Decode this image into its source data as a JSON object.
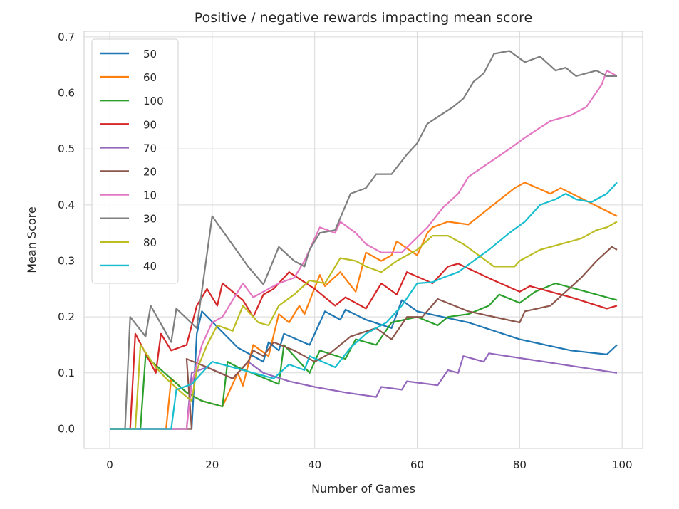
{
  "chart_data": {
    "type": "line",
    "title": "Positive / negative rewards impacting mean score",
    "xlabel": "Number of Games",
    "ylabel": "Mean Score",
    "xlim": [
      -5,
      104
    ],
    "ylim": [
      -0.035,
      0.71
    ],
    "xticks": [
      0,
      20,
      40,
      60,
      80,
      100
    ],
    "yticks": [
      0.0,
      0.1,
      0.2,
      0.3,
      0.4,
      0.5,
      0.6,
      0.7
    ],
    "grid": true,
    "legend_position": "upper-left",
    "series": [
      {
        "name": "50",
        "color": "#1f77b4",
        "points": [
          [
            0,
            0
          ],
          [
            16,
            0
          ],
          [
            17,
            0.17
          ],
          [
            18,
            0.21
          ],
          [
            25,
            0.145
          ],
          [
            28,
            0.13
          ],
          [
            30,
            0.12
          ],
          [
            31,
            0.155
          ],
          [
            33,
            0.14
          ],
          [
            34,
            0.17
          ],
          [
            39,
            0.15
          ],
          [
            42,
            0.21
          ],
          [
            45,
            0.195
          ],
          [
            46,
            0.213
          ],
          [
            50,
            0.195
          ],
          [
            55,
            0.18
          ],
          [
            57,
            0.23
          ],
          [
            60,
            0.21
          ],
          [
            70,
            0.19
          ],
          [
            80,
            0.16
          ],
          [
            90,
            0.14
          ],
          [
            97,
            0.133
          ],
          [
            99,
            0.15
          ]
        ]
      },
      {
        "name": "60",
        "color": "#ff7f0e",
        "points": [
          [
            0,
            0
          ],
          [
            11,
            0
          ],
          [
            12,
            0.09
          ],
          [
            15,
            0.065
          ],
          [
            18,
            0.05
          ],
          [
            22,
            0.04
          ],
          [
            25,
            0.1
          ],
          [
            26,
            0.077
          ],
          [
            28,
            0.15
          ],
          [
            31,
            0.13
          ],
          [
            33,
            0.205
          ],
          [
            35,
            0.19
          ],
          [
            37,
            0.22
          ],
          [
            38,
            0.205
          ],
          [
            41,
            0.275
          ],
          [
            42,
            0.255
          ],
          [
            45,
            0.28
          ],
          [
            48,
            0.245
          ],
          [
            50,
            0.315
          ],
          [
            53,
            0.3
          ],
          [
            55,
            0.31
          ],
          [
            56,
            0.335
          ],
          [
            60,
            0.31
          ],
          [
            62,
            0.35
          ],
          [
            63,
            0.36
          ],
          [
            66,
            0.37
          ],
          [
            70,
            0.365
          ],
          [
            79,
            0.43
          ],
          [
            81,
            0.44
          ],
          [
            86,
            0.42
          ],
          [
            88,
            0.43
          ],
          [
            99,
            0.38
          ]
        ]
      },
      {
        "name": "100",
        "color": "#2ca02c",
        "points": [
          [
            0,
            0
          ],
          [
            6,
            0
          ],
          [
            7,
            0.13
          ],
          [
            15,
            0.065
          ],
          [
            18,
            0.05
          ],
          [
            22,
            0.04
          ],
          [
            23,
            0.12
          ],
          [
            25,
            0.11
          ],
          [
            33,
            0.08
          ],
          [
            34,
            0.15
          ],
          [
            37,
            0.12
          ],
          [
            39,
            0.1
          ],
          [
            41,
            0.14
          ],
          [
            46,
            0.125
          ],
          [
            48,
            0.16
          ],
          [
            52,
            0.15
          ],
          [
            55,
            0.19
          ],
          [
            60,
            0.2
          ],
          [
            64,
            0.185
          ],
          [
            66,
            0.2
          ],
          [
            70,
            0.205
          ],
          [
            74,
            0.22
          ],
          [
            76,
            0.24
          ],
          [
            80,
            0.225
          ],
          [
            83,
            0.245
          ],
          [
            87,
            0.26
          ],
          [
            99,
            0.23
          ]
        ]
      },
      {
        "name": "90",
        "color": "#d62728",
        "points": [
          [
            0,
            0
          ],
          [
            4,
            0
          ],
          [
            5,
            0.17
          ],
          [
            9,
            0.1
          ],
          [
            10,
            0.17
          ],
          [
            12,
            0.14
          ],
          [
            15,
            0.15
          ],
          [
            17,
            0.22
          ],
          [
            19,
            0.25
          ],
          [
            21,
            0.22
          ],
          [
            22,
            0.26
          ],
          [
            26,
            0.23
          ],
          [
            28,
            0.2
          ],
          [
            30,
            0.24
          ],
          [
            32,
            0.25
          ],
          [
            35,
            0.28
          ],
          [
            40,
            0.25
          ],
          [
            44,
            0.22
          ],
          [
            46,
            0.235
          ],
          [
            50,
            0.215
          ],
          [
            53,
            0.26
          ],
          [
            56,
            0.24
          ],
          [
            58,
            0.28
          ],
          [
            63,
            0.26
          ],
          [
            66,
            0.29
          ],
          [
            68,
            0.295
          ],
          [
            75,
            0.265
          ],
          [
            80,
            0.245
          ],
          [
            82,
            0.255
          ],
          [
            90,
            0.235
          ],
          [
            97,
            0.215
          ],
          [
            99,
            0.22
          ]
        ]
      },
      {
        "name": "70",
        "color": "#9467bd",
        "points": [
          [
            0,
            0
          ],
          [
            15,
            0
          ],
          [
            16,
            0.1
          ],
          [
            19,
            0.11
          ],
          [
            24,
            0.09
          ],
          [
            27,
            0.12
          ],
          [
            30,
            0.1
          ],
          [
            35,
            0.085
          ],
          [
            40,
            0.075
          ],
          [
            46,
            0.065
          ],
          [
            52,
            0.057
          ],
          [
            53,
            0.075
          ],
          [
            57,
            0.07
          ],
          [
            58,
            0.085
          ],
          [
            64,
            0.078
          ],
          [
            66,
            0.105
          ],
          [
            68,
            0.1
          ],
          [
            69,
            0.13
          ],
          [
            73,
            0.12
          ],
          [
            74,
            0.135
          ],
          [
            99,
            0.1
          ]
        ]
      },
      {
        "name": "20",
        "color": "#8c564b",
        "points": [
          [
            0,
            0
          ],
          [
            16,
            0
          ],
          [
            15,
            0.125
          ],
          [
            19,
            0.11
          ],
          [
            24,
            0.09
          ],
          [
            27,
            0.12
          ],
          [
            28,
            0.14
          ],
          [
            30,
            0.13
          ],
          [
            32,
            0.155
          ],
          [
            36,
            0.14
          ],
          [
            40,
            0.12
          ],
          [
            43,
            0.135
          ],
          [
            47,
            0.165
          ],
          [
            52,
            0.18
          ],
          [
            55,
            0.16
          ],
          [
            58,
            0.2
          ],
          [
            61,
            0.2
          ],
          [
            64,
            0.232
          ],
          [
            70,
            0.21
          ],
          [
            80,
            0.19
          ],
          [
            81,
            0.21
          ],
          [
            86,
            0.22
          ],
          [
            92,
            0.27
          ],
          [
            95,
            0.3
          ],
          [
            98,
            0.325
          ],
          [
            99,
            0.32
          ]
        ]
      },
      {
        "name": "10",
        "color": "#e377c2",
        "points": [
          [
            0,
            0
          ],
          [
            15,
            0
          ],
          [
            16,
            0.08
          ],
          [
            18,
            0.15
          ],
          [
            20,
            0.19
          ],
          [
            22,
            0.2
          ],
          [
            24,
            0.23
          ],
          [
            26,
            0.26
          ],
          [
            28,
            0.235
          ],
          [
            31,
            0.25
          ],
          [
            33,
            0.26
          ],
          [
            36,
            0.27
          ],
          [
            38,
            0.3
          ],
          [
            41,
            0.36
          ],
          [
            44,
            0.35
          ],
          [
            45,
            0.37
          ],
          [
            48,
            0.35
          ],
          [
            50,
            0.33
          ],
          [
            53,
            0.315
          ],
          [
            57,
            0.315
          ],
          [
            62,
            0.36
          ],
          [
            65,
            0.395
          ],
          [
            68,
            0.42
          ],
          [
            70,
            0.45
          ],
          [
            74,
            0.475
          ],
          [
            78,
            0.5
          ],
          [
            81,
            0.52
          ],
          [
            86,
            0.55
          ],
          [
            90,
            0.56
          ],
          [
            93,
            0.575
          ],
          [
            96,
            0.615
          ],
          [
            97,
            0.64
          ],
          [
            99,
            0.63
          ]
        ]
      },
      {
        "name": "30",
        "color": "#7f7f7f",
        "points": [
          [
            0,
            0
          ],
          [
            3,
            0
          ],
          [
            4,
            0.2
          ],
          [
            7,
            0.165
          ],
          [
            8,
            0.22
          ],
          [
            12,
            0.155
          ],
          [
            13,
            0.215
          ],
          [
            17,
            0.18
          ],
          [
            20,
            0.38
          ],
          [
            27,
            0.29
          ],
          [
            30,
            0.258
          ],
          [
            31,
            0.28
          ],
          [
            33,
            0.325
          ],
          [
            36,
            0.3
          ],
          [
            38,
            0.29
          ],
          [
            39,
            0.32
          ],
          [
            41,
            0.35
          ],
          [
            44,
            0.355
          ],
          [
            47,
            0.42
          ],
          [
            50,
            0.43
          ],
          [
            52,
            0.455
          ],
          [
            55,
            0.455
          ],
          [
            58,
            0.49
          ],
          [
            60,
            0.51
          ],
          [
            62,
            0.545
          ],
          [
            67,
            0.575
          ],
          [
            69,
            0.59
          ],
          [
            71,
            0.62
          ],
          [
            73,
            0.635
          ],
          [
            75,
            0.67
          ],
          [
            78,
            0.675
          ],
          [
            81,
            0.655
          ],
          [
            84,
            0.665
          ],
          [
            87,
            0.64
          ],
          [
            89,
            0.645
          ],
          [
            91,
            0.63
          ],
          [
            95,
            0.64
          ],
          [
            97,
            0.63
          ],
          [
            99,
            0.63
          ]
        ]
      },
      {
        "name": "80",
        "color": "#bcbd22",
        "points": [
          [
            0,
            0
          ],
          [
            5,
            0
          ],
          [
            6,
            0.15
          ],
          [
            9,
            0.11
          ],
          [
            11,
            0.09
          ],
          [
            14,
            0.065
          ],
          [
            16,
            0.05
          ],
          [
            17,
            0.105
          ],
          [
            19,
            0.15
          ],
          [
            21,
            0.185
          ],
          [
            24,
            0.175
          ],
          [
            26,
            0.22
          ],
          [
            29,
            0.19
          ],
          [
            31,
            0.185
          ],
          [
            33,
            0.22
          ],
          [
            36,
            0.24
          ],
          [
            39,
            0.265
          ],
          [
            42,
            0.26
          ],
          [
            45,
            0.305
          ],
          [
            48,
            0.3
          ],
          [
            50,
            0.29
          ],
          [
            53,
            0.28
          ],
          [
            56,
            0.3
          ],
          [
            60,
            0.32
          ],
          [
            63,
            0.345
          ],
          [
            66,
            0.345
          ],
          [
            69,
            0.33
          ],
          [
            75,
            0.29
          ],
          [
            79,
            0.29
          ],
          [
            80,
            0.3
          ],
          [
            84,
            0.32
          ],
          [
            88,
            0.33
          ],
          [
            92,
            0.34
          ],
          [
            95,
            0.355
          ],
          [
            97,
            0.36
          ],
          [
            99,
            0.37
          ]
        ]
      },
      {
        "name": "40",
        "color": "#17becf",
        "points": [
          [
            0,
            0
          ],
          [
            12,
            0
          ],
          [
            13,
            0.07
          ],
          [
            16,
            0.08
          ],
          [
            20,
            0.12
          ],
          [
            24,
            0.11
          ],
          [
            30,
            0.095
          ],
          [
            32,
            0.09
          ],
          [
            35,
            0.115
          ],
          [
            38,
            0.105
          ],
          [
            39,
            0.13
          ],
          [
            44,
            0.11
          ],
          [
            47,
            0.145
          ],
          [
            50,
            0.17
          ],
          [
            54,
            0.19
          ],
          [
            57,
            0.22
          ],
          [
            60,
            0.26
          ],
          [
            63,
            0.262
          ],
          [
            65,
            0.27
          ],
          [
            68,
            0.28
          ],
          [
            71,
            0.3
          ],
          [
            74,
            0.32
          ],
          [
            78,
            0.35
          ],
          [
            81,
            0.37
          ],
          [
            84,
            0.4
          ],
          [
            87,
            0.41
          ],
          [
            89,
            0.42
          ],
          [
            91,
            0.41
          ],
          [
            94,
            0.405
          ],
          [
            97,
            0.42
          ],
          [
            99,
            0.44
          ]
        ]
      }
    ]
  }
}
